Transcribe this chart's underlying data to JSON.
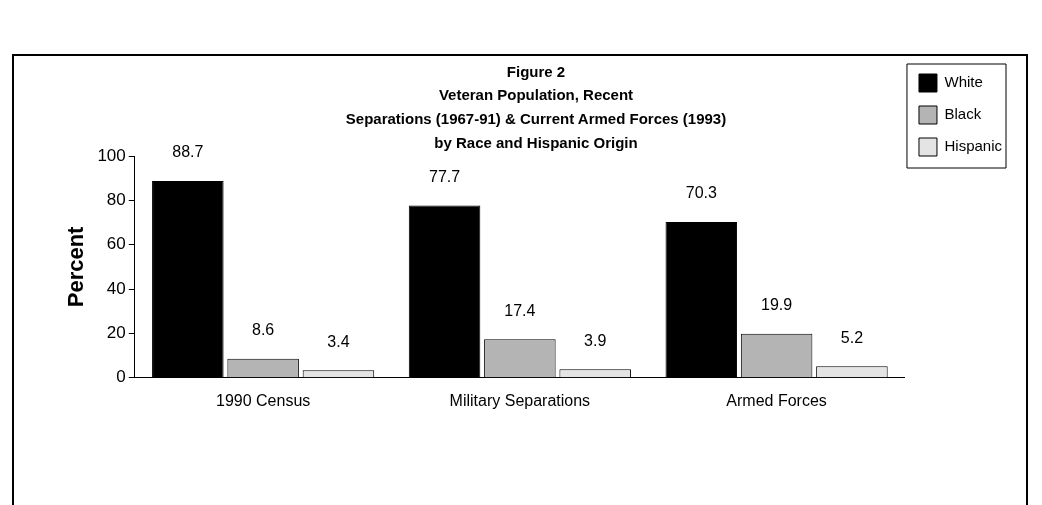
{
  "chart_data": {
    "type": "bar",
    "title": "Figure 2",
    "subtitle": "Veteran Population, Recent\nSeparations (1967-91) & Current Armed Forces (1993)\nby Race and Hispanic Origin",
    "ylabel": "Percent",
    "categories": [
      "1990 Census",
      "Military Separations",
      "Armed Forces"
    ],
    "series": [
      {
        "name": "White",
        "color": "#000000",
        "values": [
          88.7,
          77.7,
          70.3
        ]
      },
      {
        "name": "Black",
        "color": "#b4b4b4",
        "values": [
          8.6,
          17.4,
          19.9
        ]
      },
      {
        "name": "Hispanic",
        "color": "#e4e4e4",
        "values": [
          3.4,
          3.9,
          5.2
        ]
      }
    ],
    "ylim": [
      0,
      100
    ],
    "yticks": [
      0,
      20,
      40,
      60,
      80,
      100
    ],
    "legend": "top right",
    "data_labels": true
  }
}
